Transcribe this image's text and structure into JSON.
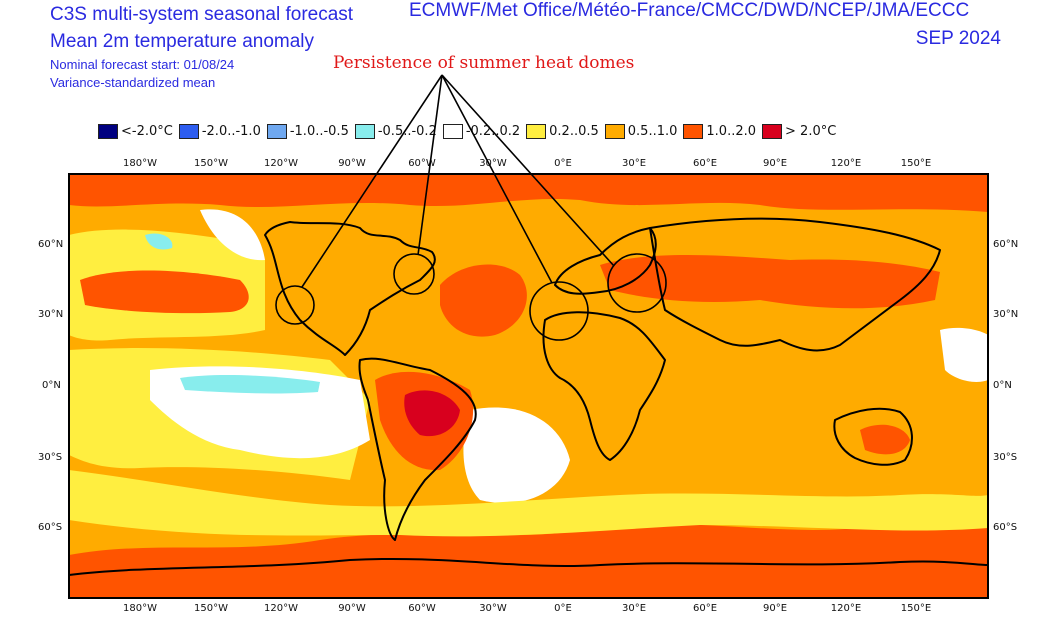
{
  "header": {
    "title_line1": "C3S multi-system seasonal forecast",
    "title_line2": "Mean 2m temperature anomaly",
    "forecast_start": "Nominal forecast start: 01/08/24",
    "mean_type": "Variance-standardized mean",
    "centres": "ECMWF/Met Office/Météo-France/CMCC/DWD/NCEP/JMA/ECCC",
    "valid_month": "SEP 2024"
  },
  "annotation": "Persistence of summer heat domes",
  "legend": [
    {
      "label": "<-2.0°C",
      "color": "#000080"
    },
    {
      "label": "-2.0..-1.0",
      "color": "#2d5df0"
    },
    {
      "label": "-1.0..-0.5",
      "color": "#6fa8f0"
    },
    {
      "label": "-0.5..-0.2",
      "color": "#88eded"
    },
    {
      "label": "-0.2..0.2",
      "color": "#ffffff"
    },
    {
      "label": "0.2..0.5",
      "color": "#ffee40"
    },
    {
      "label": "0.5..1.0",
      "color": "#ffab00"
    },
    {
      "label": "1.0..2.0",
      "color": "#ff5400"
    },
    {
      "label": "> 2.0°C",
      "color": "#d8001e"
    }
  ],
  "lon_labels": [
    "180°W",
    "150°W",
    "120°W",
    "90°W",
    "60°W",
    "30°W",
    "0°E",
    "30°E",
    "60°E",
    "90°E",
    "120°E",
    "150°E"
  ],
  "lat_labels": [
    "60°N",
    "30°N",
    "0°N",
    "30°S",
    "60°S"
  ]
}
